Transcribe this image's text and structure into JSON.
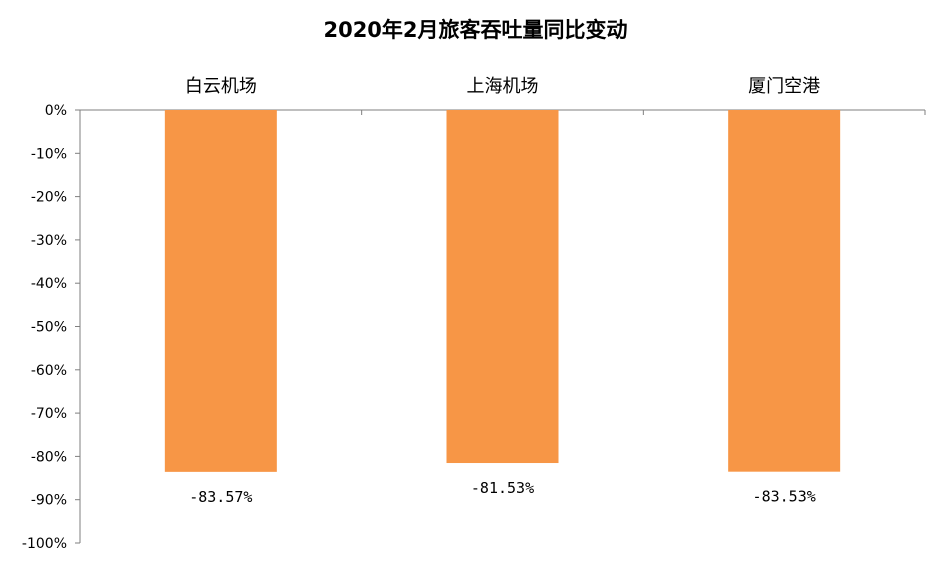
{
  "chart_data": {
    "type": "bar",
    "title": "2020年2月旅客吞吐量同比变动",
    "categories": [
      "白云机场",
      "上海机场",
      "厦门空港"
    ],
    "values": [
      -83.57,
      -81.53,
      -83.53
    ],
    "data_labels": [
      "-83.57%",
      "-81.53%",
      "-83.53%"
    ],
    "ylim": [
      -100,
      0
    ],
    "yticks": [
      0,
      -10,
      -20,
      -30,
      -40,
      -50,
      -60,
      -70,
      -80,
      -90,
      -100
    ],
    "ytick_labels": [
      "0%",
      "-10%",
      "-20%",
      "-30%",
      "-40%",
      "-50%",
      "-60%",
      "-70%",
      "-80%",
      "-90%",
      "-100%"
    ],
    "category_axis_position": "top",
    "grid": false,
    "legend": "none",
    "colors": {
      "bar": "#F79646",
      "axis": "#7f7f7f"
    }
  }
}
